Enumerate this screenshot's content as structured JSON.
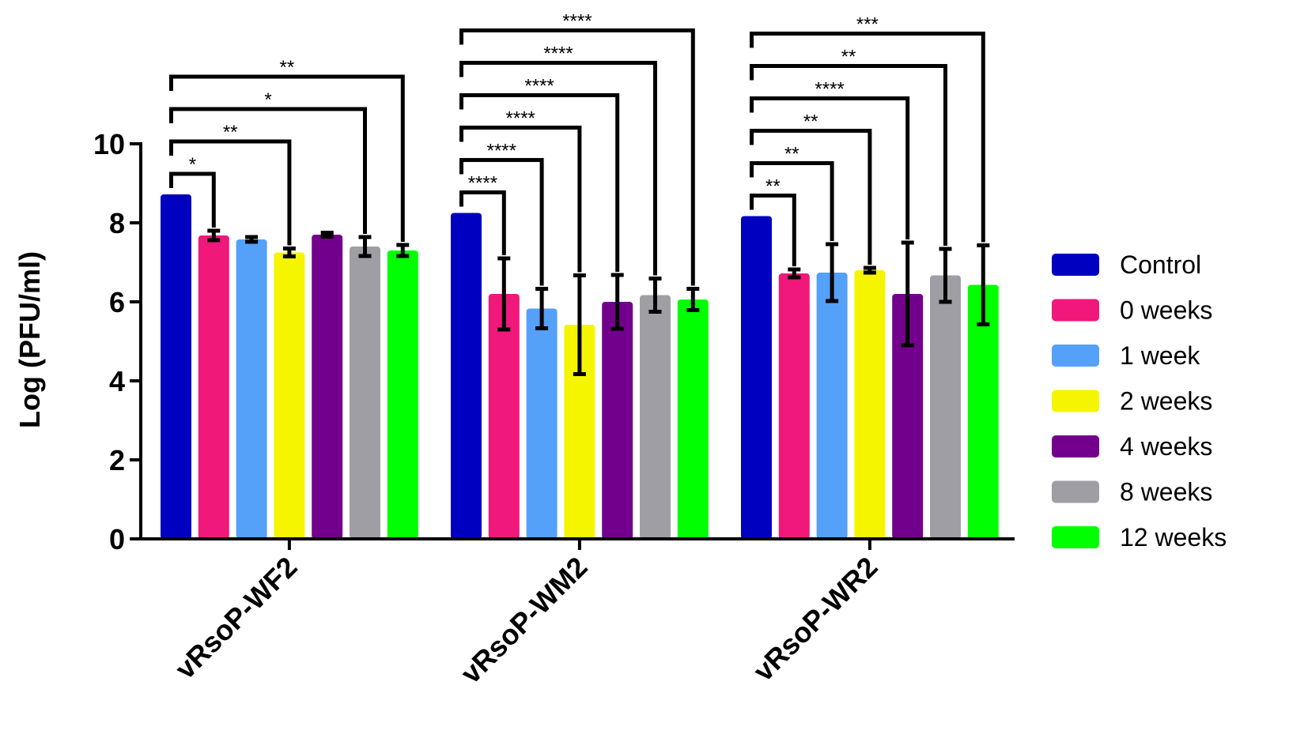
{
  "chart_data": {
    "type": "bar",
    "title": "",
    "xlabel": "",
    "ylabel": "Log (PFU/ml)",
    "ylim": [
      0,
      10
    ],
    "yticks": [
      0,
      2,
      4,
      6,
      8,
      10
    ],
    "grid": false,
    "legend_position": "right",
    "categories": [
      "vRsoP-WF2",
      "vRsoP-WM2",
      "vRsoP-WR2"
    ],
    "series": [
      {
        "name": "Control",
        "color": "#0000c0",
        "values": [
          8.72,
          8.25,
          8.17
        ],
        "errors": [
          0,
          0,
          0
        ]
      },
      {
        "name": "0 weeks",
        "color": "#f0187a",
        "values": [
          7.68,
          6.2,
          6.72
        ],
        "errors": [
          0.12,
          0.9,
          0.1
        ]
      },
      {
        "name": "1 week",
        "color": "#55a0f8",
        "values": [
          7.58,
          5.83,
          6.74
        ],
        "errors": [
          0.06,
          0.5,
          0.72
        ]
      },
      {
        "name": "2 weeks",
        "color": "#f5f500",
        "values": [
          7.25,
          5.42,
          6.8
        ],
        "errors": [
          0.1,
          1.25,
          0.06
        ]
      },
      {
        "name": "4 weeks",
        "color": "#73008c",
        "values": [
          7.7,
          6.0,
          6.2
        ],
        "errors": [
          0.05,
          0.68,
          1.3
        ]
      },
      {
        "name": "8 weeks",
        "color": "#9e9ea4",
        "values": [
          7.4,
          6.17,
          6.67
        ],
        "errors": [
          0.24,
          0.42,
          0.67
        ]
      },
      {
        "name": "12 weeks",
        "color": "#00ff00",
        "values": [
          7.3,
          6.06,
          6.43
        ],
        "errors": [
          0.14,
          0.27,
          1.0
        ]
      }
    ],
    "significance": [
      [
        {
          "label": "*",
          "compare_to": "0 weeks"
        },
        {
          "label": "**",
          "compare_to": "2 weeks"
        },
        {
          "label": "*",
          "compare_to": "8 weeks"
        },
        {
          "label": "**",
          "compare_to": "12 weeks"
        }
      ],
      [
        {
          "label": "****",
          "compare_to": "0 weeks"
        },
        {
          "label": "****",
          "compare_to": "1 week"
        },
        {
          "label": "****",
          "compare_to": "2 weeks"
        },
        {
          "label": "****",
          "compare_to": "4 weeks"
        },
        {
          "label": "****",
          "compare_to": "8 weeks"
        },
        {
          "label": "****",
          "compare_to": "12 weeks"
        }
      ],
      [
        {
          "label": "**",
          "compare_to": "0 weeks"
        },
        {
          "label": "**",
          "compare_to": "1 week"
        },
        {
          "label": "**",
          "compare_to": "2 weeks"
        },
        {
          "label": "****",
          "compare_to": "4 weeks"
        },
        {
          "label": "**",
          "compare_to": "8 weeks"
        },
        {
          "label": "***",
          "compare_to": "12 weeks"
        }
      ]
    ]
  }
}
